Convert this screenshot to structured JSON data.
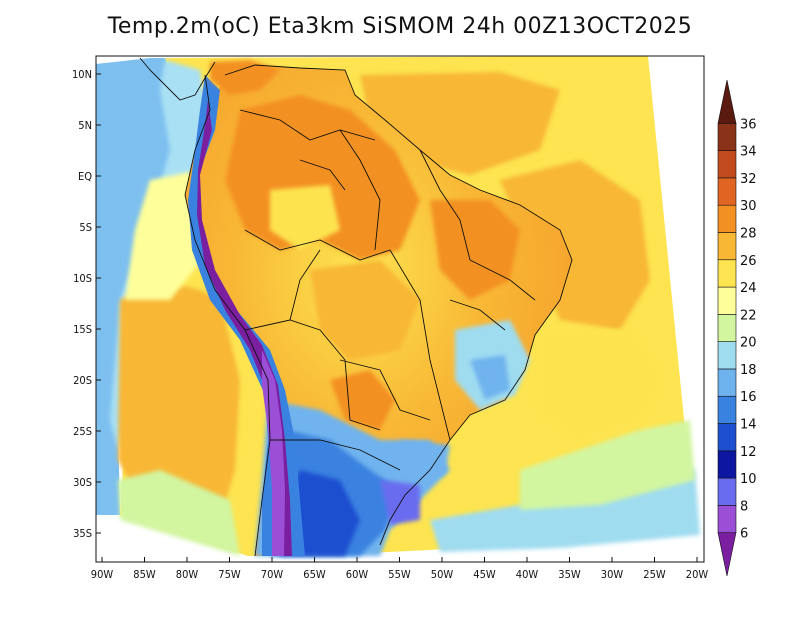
{
  "title": "Temp.2m(oC) Eta3km SiSMOM 24h 00Z13OCT2025",
  "lat_labels": [
    "10N",
    "5N",
    "EQ",
    "5S",
    "10S",
    "15S",
    "20S",
    "25S",
    "30S",
    "35S"
  ],
  "lon_labels": [
    "90W",
    "85W",
    "80W",
    "75W",
    "70W",
    "65W",
    "60W",
    "55W",
    "50W",
    "45W",
    "40W",
    "35W",
    "30W",
    "25W",
    "20W"
  ],
  "colorbar": {
    "levels": [
      "6",
      "8",
      "10",
      "12",
      "14",
      "16",
      "18",
      "20",
      "22",
      "24",
      "26",
      "28",
      "30",
      "32",
      "34",
      "36"
    ],
    "colors": [
      "#7a1fa0",
      "#9b4fd6",
      "#6a6cf0",
      "#0d16a0",
      "#1e4fd0",
      "#3a82e0",
      "#6fb3ee",
      "#9fdcf0",
      "#d2f5a0",
      "#fefe9a",
      "#fde450",
      "#f8b735",
      "#f39024",
      "#e06522",
      "#c24b1d",
      "#8b3318",
      "#5a1a10"
    ]
  },
  "legend_units": "oC"
}
